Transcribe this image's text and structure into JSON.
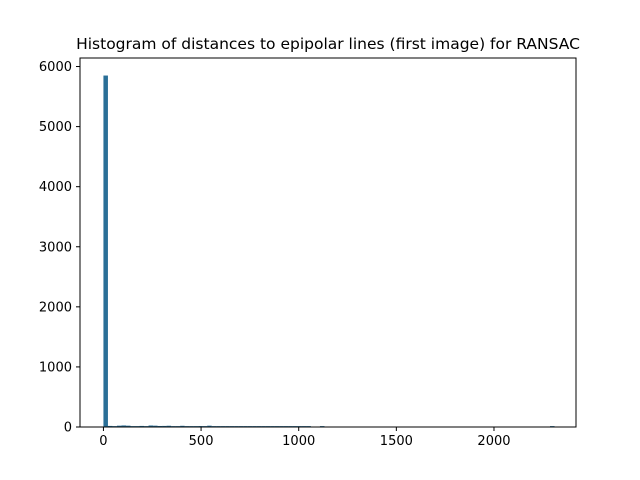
{
  "chart_data": {
    "type": "bar",
    "title": "Histogram of distances to epipolar lines (first image) for RANSAC",
    "xlabel": "",
    "ylabel": "",
    "xlim": [
      -120,
      2420
    ],
    "ylim": [
      0,
      6142
    ],
    "xticks": [
      0,
      500,
      1000,
      1500,
      2000
    ],
    "xtick_labels": [
      "0",
      "500",
      "1000",
      "1500",
      "2000"
    ],
    "yticks": [
      0,
      1000,
      2000,
      3000,
      4000,
      5000,
      6000
    ],
    "ytick_labels": [
      "0",
      "1000",
      "2000",
      "3000",
      "4000",
      "5000",
      "6000"
    ],
    "grid": false,
    "legend": "none",
    "bar_color": "#2a6f97",
    "bins": {
      "start": 0,
      "width": 23.1,
      "values": [
        5850,
        18,
        9,
        22,
        26,
        22,
        12,
        14,
        18,
        9,
        25,
        22,
        17,
        18,
        21,
        11,
        9,
        20,
        9,
        11,
        5,
        16,
        9,
        22,
        14,
        8,
        8,
        5,
        11,
        7,
        4,
        12,
        9,
        6,
        7,
        4,
        10,
        6,
        3,
        8,
        3,
        6,
        1,
        5,
        2,
        1,
        0,
        0,
        2,
        0,
        0,
        0,
        0,
        0,
        0,
        0,
        0,
        0,
        0,
        0,
        0,
        0,
        0,
        0,
        0,
        0,
        0,
        0,
        0,
        0,
        0,
        0,
        0,
        0,
        0,
        0,
        0,
        0,
        0,
        0,
        0,
        0,
        0,
        0,
        0,
        0,
        0,
        0,
        0,
        0,
        0,
        0,
        0,
        0,
        0,
        0,
        0,
        0,
        0,
        1
      ]
    }
  }
}
